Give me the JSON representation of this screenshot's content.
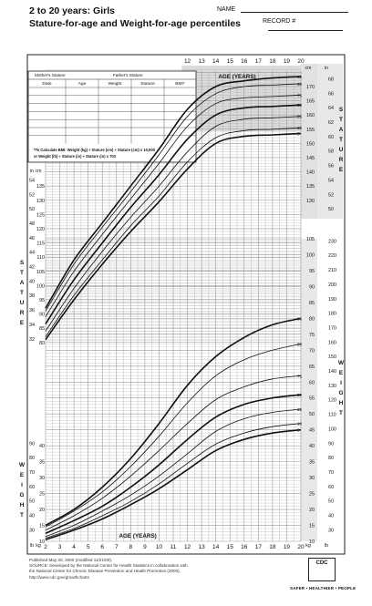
{
  "header": {
    "title": "2 to 20 years: Girls",
    "subtitle": "Stature-for-age and Weight-for-age percentiles",
    "name_label": "NAME",
    "record_label": "RECORD #"
  },
  "table": {
    "top_labels": [
      "Mother's Stature",
      "Father's Stature"
    ],
    "columns": [
      "Date",
      "Age",
      "Weight",
      "Stature",
      "BMI*"
    ],
    "bmi_note_line1": "*To Calculate BMI: Weight (kg) ÷ Stature (cm) ÷ Stature (cm) x 10,000",
    "bmi_note_line2": "or Weight (lb) ÷ Stature (in) ÷ Stature (in) x 703"
  },
  "side_labels": {
    "stature": "STATURE",
    "weight": "WEIGHT"
  },
  "footer": {
    "line1": "Published May 30, 2000 (modified 11/21/00).",
    "line2": "SOURCE: Developed by the National Center for Health Statistics in collaboration with",
    "line3": "the National Center for Chronic Disease Prevention and Health Promotion (2000).",
    "line4": "http://www.cdc.gov/growthcharts",
    "logo": "CDC",
    "tagline": "SAFER • HEALTHIER • PEOPLE"
  },
  "colors": {
    "grid": "#9a9a9a",
    "curve": "#111111",
    "shade": "#bdbdbd"
  },
  "chart_data": [
    {
      "type": "line",
      "title": "Stature-for-age",
      "xlabel": "AGE (YEARS)",
      "ylabel_left": "in",
      "ylabel_right": "cm",
      "xlim": [
        2,
        20
      ],
      "ylim": [
        78,
        178
      ],
      "x_ticks": [
        2,
        3,
        4,
        5,
        6,
        7,
        8,
        9,
        10,
        11,
        12,
        13,
        14,
        15,
        16,
        17,
        18,
        19,
        20
      ],
      "y_ticks_cm": [
        80,
        85,
        90,
        95,
        100,
        105,
        110,
        115,
        120,
        125,
        130,
        135,
        140,
        145,
        150,
        155,
        160,
        165,
        170,
        175
      ],
      "y_ticks_in": [
        32,
        34,
        36,
        38,
        40,
        42,
        44,
        46,
        48,
        50,
        52,
        54,
        56,
        58,
        60,
        62,
        64,
        66,
        68
      ],
      "x": [
        2,
        4,
        6,
        8,
        10,
        12,
        14,
        16,
        18,
        20
      ],
      "series": [
        {
          "name": "95",
          "values": [
            92,
            109,
            122,
            135,
            148,
            162,
            170,
            172,
            173,
            173.5
          ]
        },
        {
          "name": "90",
          "values": [
            91,
            107.5,
            120.5,
            133,
            146,
            159.5,
            167.5,
            170,
            170.5,
            171
          ]
        },
        {
          "name": "75",
          "values": [
            89,
            105,
            118,
            130.5,
            143,
            156,
            164,
            166,
            166.5,
            167
          ]
        },
        {
          "name": "50",
          "values": [
            86.5,
            102,
            115,
            127.5,
            139,
            151.5,
            160,
            162.5,
            163,
            163.5
          ]
        },
        {
          "name": "25",
          "values": [
            84,
            99,
            112,
            124,
            135,
            147,
            156,
            158.5,
            159,
            159.5
          ]
        },
        {
          "name": "10",
          "values": [
            82,
            96.5,
            109,
            121,
            131.5,
            143.5,
            152,
            154.5,
            155,
            155.5
          ]
        },
        {
          "name": "5",
          "values": [
            81,
            95,
            107.5,
            119,
            129.5,
            141,
            150,
            152.5,
            153,
            153.5
          ]
        }
      ]
    },
    {
      "type": "line",
      "title": "Weight-for-age",
      "xlabel": "AGE (YEARS)",
      "ylabel_left": "lb",
      "ylabel_right": "kg",
      "xlim": [
        2,
        20
      ],
      "ylim": [
        10,
        105
      ],
      "x_ticks": [
        2,
        3,
        4,
        5,
        6,
        7,
        8,
        9,
        10,
        11,
        12,
        13,
        14,
        15,
        16,
        17,
        18,
        19,
        20
      ],
      "y_ticks_kg": [
        10,
        15,
        20,
        25,
        30,
        35,
        40,
        45,
        50,
        55,
        60,
        65,
        70,
        75,
        80,
        85,
        90,
        95,
        100,
        105
      ],
      "y_ticks_lb": [
        30,
        40,
        50,
        60,
        70,
        80,
        90,
        100,
        110,
        120,
        130,
        140,
        150,
        160,
        170,
        180,
        190,
        200,
        210,
        220,
        230
      ],
      "x": [
        2,
        4,
        6,
        8,
        10,
        12,
        14,
        16,
        18,
        20
      ],
      "series": [
        {
          "name": "95",
          "values": [
            15,
            20,
            27,
            36,
            47,
            59,
            68,
            74,
            78,
            80
          ]
        },
        {
          "name": "90",
          "values": [
            14.5,
            19.5,
            25.5,
            33.5,
            43,
            53.5,
            62,
            67,
            70,
            72
          ]
        },
        {
          "name": "75",
          "values": [
            13.5,
            18,
            23.5,
            30.5,
            38.5,
            47,
            54.5,
            58.5,
            61,
            62
          ]
        },
        {
          "name": "50",
          "values": [
            12.5,
            16.5,
            21,
            27,
            34,
            42,
            49,
            53,
            55,
            56
          ]
        },
        {
          "name": "25",
          "values": [
            11.5,
            15,
            19.5,
            24.5,
            30.5,
            37.5,
            44.5,
            48.5,
            50.5,
            51.5
          ]
        },
        {
          "name": "10",
          "values": [
            11,
            14,
            18,
            22.5,
            28,
            34.5,
            40.5,
            44,
            46,
            47
          ]
        },
        {
          "name": "5",
          "values": [
            10.5,
            13.5,
            17,
            21.5,
            26.5,
            32.5,
            38.5,
            42,
            44,
            45
          ]
        }
      ]
    }
  ]
}
